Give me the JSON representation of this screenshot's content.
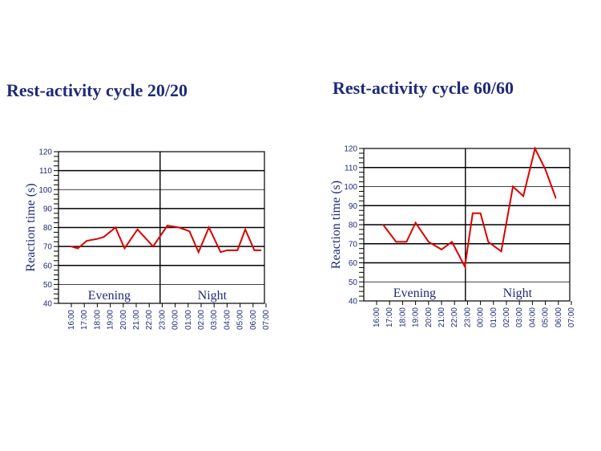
{
  "chart_data": [
    {
      "type": "line",
      "title": "Rest-activity  cycle 20/20",
      "ylabel": "Reaction time (s)",
      "ylim": [
        40,
        120
      ],
      "yticks": [
        40,
        50,
        60,
        70,
        80,
        90,
        100,
        110,
        120
      ],
      "xticks": [
        "16:00",
        "17:00",
        "18:00",
        "19:00",
        "20:00",
        "21:00",
        "22:00",
        "23:00",
        "00:00",
        "01:00",
        "02:00",
        "03:00",
        "04:00",
        "05:00",
        "06:00",
        "07:00"
      ],
      "periods": [
        {
          "label": "Evening",
          "from": 0,
          "to": 8
        },
        {
          "label": "Night",
          "from": 8,
          "to": 16
        }
      ],
      "series": [
        {
          "color": "#dd0000",
          "x": [
            0,
            0.5,
            1.2,
            2,
            2.5,
            3.4,
            4.1,
            5.1,
            6.3,
            7.4,
            8.3,
            9.1,
            9.8,
            10.6,
            11.5,
            12.0,
            12.8,
            13.4,
            14.1,
            14.6
          ],
          "y": [
            70,
            69,
            73,
            74,
            75,
            80,
            69,
            79,
            70,
            81,
            80,
            78,
            67,
            80,
            67,
            68,
            68,
            79,
            68,
            68
          ]
        }
      ]
    },
    {
      "type": "line",
      "title": "Rest-activity  cycle 60/60",
      "ylabel": "Reaction time (s)",
      "ylim": [
        40,
        120
      ],
      "yticks": [
        40,
        50,
        60,
        70,
        80,
        90,
        100,
        110,
        120
      ],
      "xticks": [
        "16:00",
        "17:00",
        "18:00",
        "19:00",
        "20:00",
        "21:00",
        "22:00",
        "23:00",
        "00:00",
        "01:00",
        "02:00",
        "03:00",
        "04:00",
        "05:00",
        "06:00",
        "07:00"
      ],
      "periods": [
        {
          "label": "Evening",
          "from": 0,
          "to": 8
        },
        {
          "label": "Night",
          "from": 8,
          "to": 16
        }
      ],
      "series": [
        {
          "color": "#dd0000",
          "x": [
            0.5,
            1.5,
            2.3,
            3.0,
            4.0,
            5.0,
            5.8,
            6.8,
            7.4,
            8.0,
            8.6,
            9.6,
            10.5,
            11.3,
            12.2,
            13.0,
            13.8
          ],
          "y": [
            80,
            71,
            71,
            81,
            71,
            67,
            71,
            58,
            86,
            86,
            71,
            66,
            100,
            95,
            120,
            109,
            94
          ]
        }
      ]
    }
  ]
}
